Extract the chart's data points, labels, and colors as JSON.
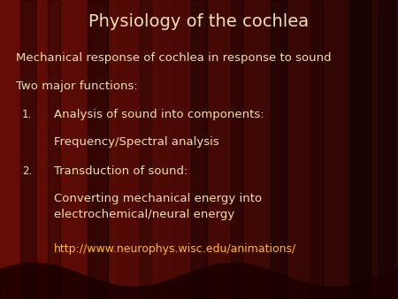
{
  "title": "Physiology of the cochlea",
  "title_color": "#F0E0B0",
  "title_fontsize": 14,
  "line1": "Mechanical response of cochlea in response to sound",
  "line2": "Two major functions:",
  "item1_num": "1.",
  "item1_text": "Analysis of sound into components:",
  "item1_sub": "Frequency/Spectral analysis",
  "item2_num": "2.",
  "item2_text": "Transduction of sound:",
  "item2_sub": "Converting mechanical energy into\nelectrochemical/neural energy",
  "link": "http://www.neurophys.wisc.edu/animations/",
  "text_color": "#F0E0B0",
  "link_color": "#FFB830",
  "body_fontsize": 9.5,
  "sub_fontsize": 9.5,
  "num_fontsize": 8.5
}
